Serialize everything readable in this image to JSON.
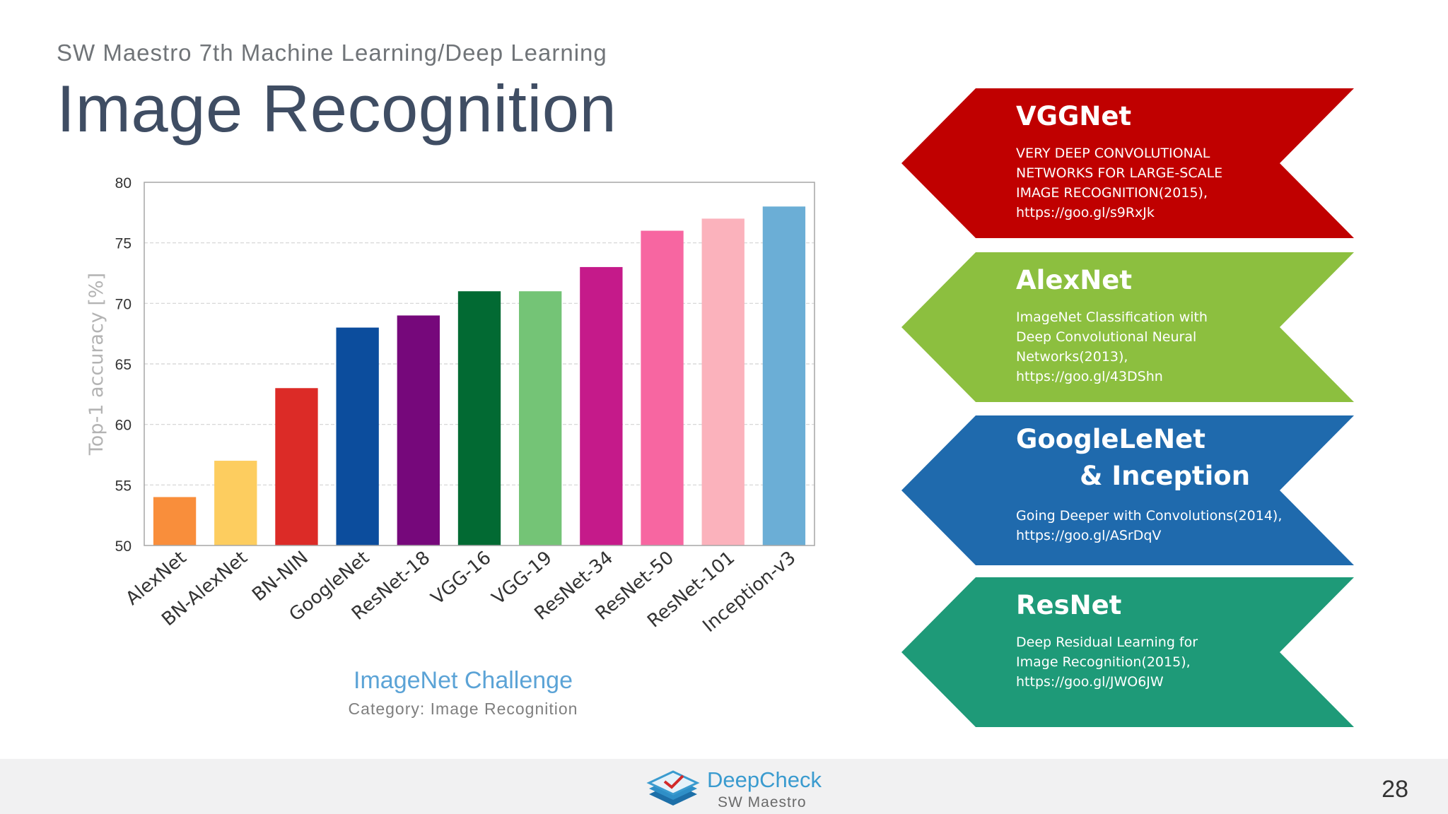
{
  "header": {
    "subtitle": "SW Maestro 7th Machine Learning/Deep Learning",
    "title": "Image Recognition"
  },
  "chart_data": {
    "type": "bar",
    "title": "ImageNet Challenge",
    "caption": "Category: Image Recognition",
    "xlabel": "",
    "ylabel": "Top-1 accuracy [%]",
    "ylim": [
      50,
      80
    ],
    "yticks": [
      50,
      55,
      60,
      65,
      70,
      75,
      80
    ],
    "grid": true,
    "categories": [
      "AlexNet",
      "BN-AlexNet",
      "BN-NIN",
      "GoogleNet",
      "ResNet-18",
      "VGG-16",
      "VGG-19",
      "ResNet-34",
      "ResNet-50",
      "ResNet-101",
      "Inception-v3"
    ],
    "values": [
      54,
      57,
      63,
      68,
      69,
      71,
      71,
      73,
      76,
      77,
      78
    ],
    "colors": [
      "#f98e3b",
      "#fdcd5f",
      "#dc2b27",
      "#0c4d9d",
      "#76087b",
      "#026a33",
      "#74c476",
      "#c51a8a",
      "#f766a1",
      "#fbb2bc",
      "#6baed6"
    ]
  },
  "banners": [
    {
      "name": "VGGNet",
      "description": "VERY DEEP CONVOLUTIONAL\nNETWORKS FOR LARGE-SCALE\n IMAGE RECOGNITION(2015),\n https://goo.gl/s9RxJk",
      "color": "#c00000"
    },
    {
      "name": "AlexNet",
      "description": "ImageNet Classification with\nDeep Convolutional Neural\nNetworks(2013),\nhttps://goo.gl/43DShn",
      "color": "#8cbf3f"
    },
    {
      "name": "GoogleLeNet\n       & Inception",
      "description": "Going Deeper with Convolutions(2014),\nhttps://goo.gl/ASrDqV",
      "color": "#1f6aad"
    },
    {
      "name": "ResNet",
      "description": "Deep Residual Learning for\nImage Recognition(2015),\nhttps://goo.gl/JWO6JW",
      "color": "#1e9a78"
    }
  ],
  "footer": {
    "logo_name": "DeepCheck",
    "logo_sub": "SW Maestro",
    "page_number": "28"
  }
}
